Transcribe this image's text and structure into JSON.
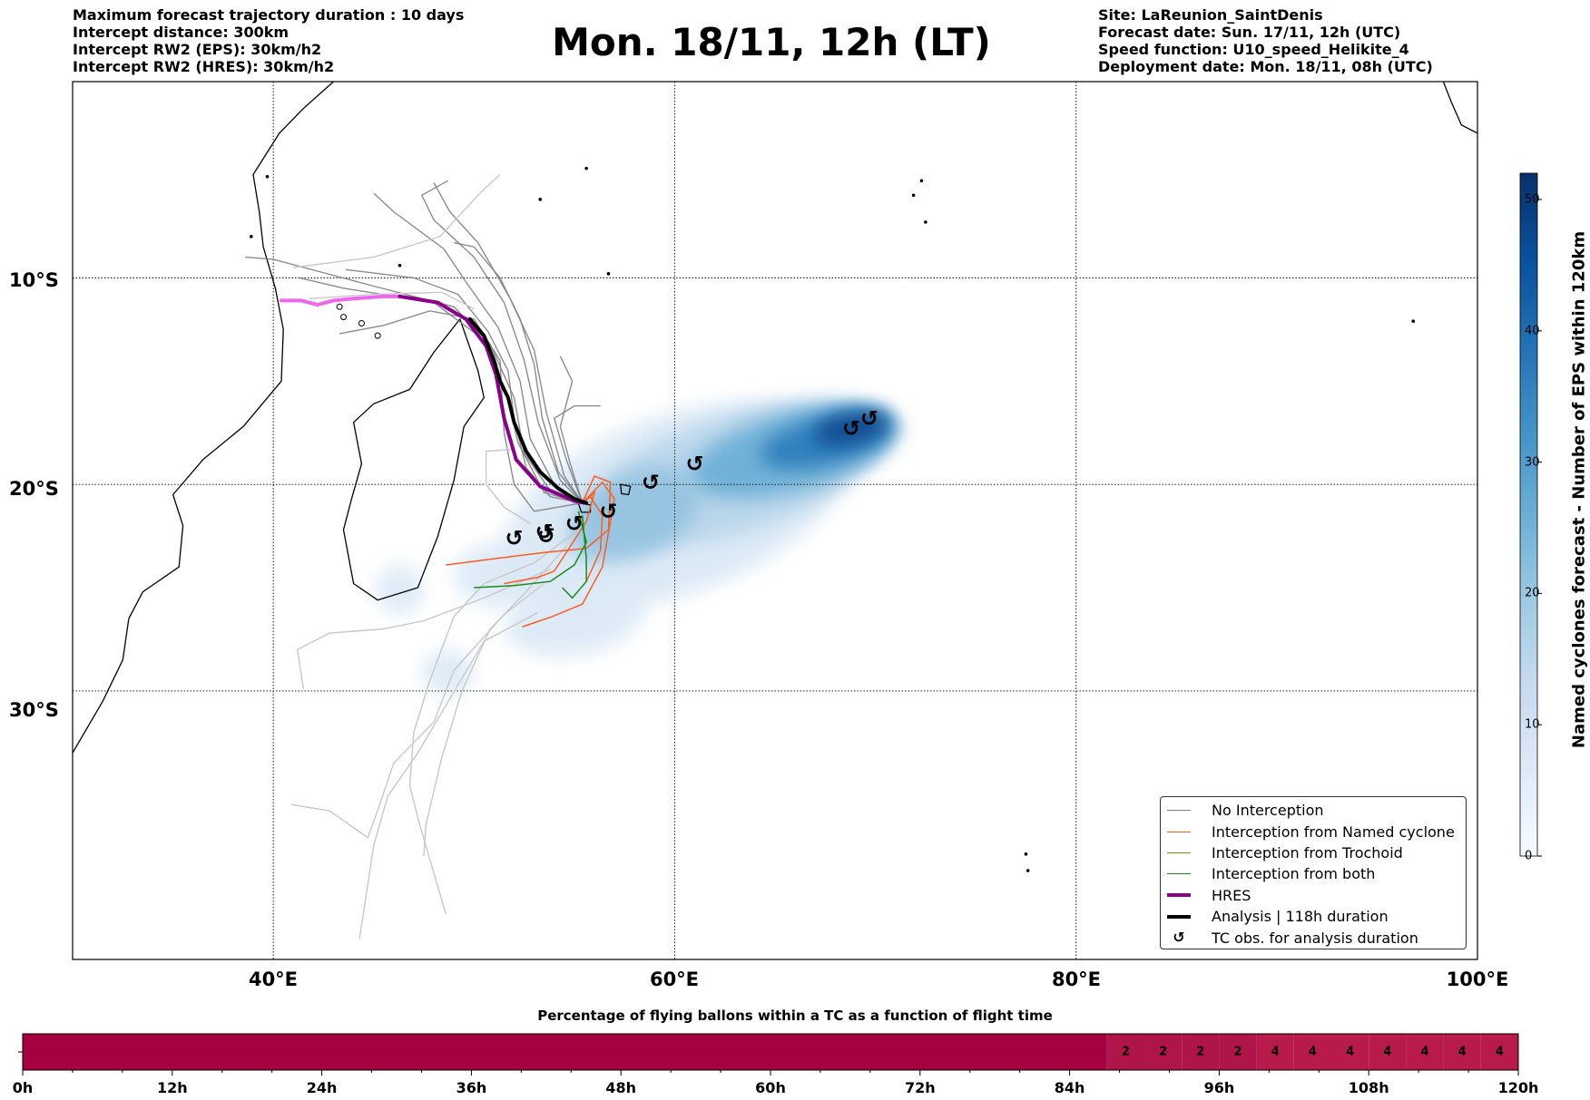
{
  "header": {
    "title": "Mon. 18/11, 12h (LT)",
    "left_lines": [
      "Maximum forecast trajectory duration : 10 days",
      "Intercept distance: 300km",
      "Intercept RW2 (EPS):  30km/h2",
      "Intercept RW2 (HRES): 30km/h2"
    ],
    "right_lines": [
      "Site: LaReunion_SaintDenis",
      "Forecast date: Sun. 17/11, 12h (UTC)",
      "Speed function: U10_speed_Helikite_4",
      "Deployment date: Mon. 18/11, 08h (UTC)"
    ]
  },
  "map": {
    "lat_labels": [
      "10°S",
      "20°S",
      "30°S"
    ],
    "lon_labels": [
      "40°E",
      "60°E",
      "80°E",
      "100°E"
    ],
    "extent": {
      "lon_min": 30,
      "lon_max": 100,
      "lat_min": -43,
      "lat_max": -0.5
    },
    "tc_observations": [
      {
        "lon": 52.0,
        "lat": -22.6
      },
      {
        "lon": 53.5,
        "lat": -22.3
      },
      {
        "lon": 53.6,
        "lat": -22.5
      },
      {
        "lon": 55.0,
        "lat": -21.9
      },
      {
        "lon": 56.7,
        "lat": -21.3
      },
      {
        "lon": 58.8,
        "lat": -19.9
      },
      {
        "lon": 61.0,
        "lat": -19.0
      },
      {
        "lon": 68.8,
        "lat": -17.3
      },
      {
        "lon": 69.7,
        "lat": -16.8
      }
    ]
  },
  "legend": {
    "items": [
      {
        "label": "No Interception",
        "color": "#808080",
        "kind": "line",
        "width": 1.5
      },
      {
        "label": "Interception from Named cyclone",
        "color": "#ff5a1f",
        "kind": "line",
        "width": 1.5
      },
      {
        "label": "Interception from Trochoid",
        "color": "#8b8b00",
        "kind": "line",
        "width": 1.5
      },
      {
        "label": "Interception from both",
        "color": "#1a8a1a",
        "kind": "line",
        "width": 1.5
      },
      {
        "label": "HRES",
        "color": "#8b008b",
        "kind": "line",
        "width": 4
      },
      {
        "label": "Analysis | 118h duration",
        "color": "#000000",
        "kind": "line",
        "width": 4
      },
      {
        "label": "TC obs. for analysis duration",
        "color": "#000000",
        "kind": "symbol",
        "symbol": "↺"
      }
    ]
  },
  "colorbar": {
    "label": "Named cyclones forecast - Number of EPS within 120km",
    "ticks": [
      "0",
      "10",
      "20",
      "30",
      "40",
      "50"
    ],
    "min": 0,
    "max": 52,
    "colors": [
      "#f7fbff",
      "#deebf7",
      "#c6dbef",
      "#9ecae1",
      "#6baed6",
      "#4292c6",
      "#2171b5",
      "#08519c",
      "#08306b"
    ]
  },
  "timeline": {
    "title": "Percentage of flying ballons within a TC as a function of flight time",
    "tick_labels": [
      "0h",
      "12h",
      "24h",
      "36h",
      "48h",
      "60h",
      "72h",
      "84h",
      "96h",
      "108h",
      "120h"
    ],
    "hours_max": 120,
    "segments": [
      {
        "from_h": 0,
        "to_h": 87,
        "color": "#a50040",
        "label": ""
      },
      {
        "from_h": 87,
        "to_h": 90,
        "color": "#b0154a",
        "label": "2"
      },
      {
        "from_h": 90,
        "to_h": 93,
        "color": "#b0154a",
        "label": "2"
      },
      {
        "from_h": 93,
        "to_h": 96,
        "color": "#b0154a",
        "label": "2"
      },
      {
        "from_h": 96,
        "to_h": 99,
        "color": "#b0154a",
        "label": "2"
      },
      {
        "from_h": 99,
        "to_h": 102,
        "color": "#b81a4c",
        "label": "4"
      },
      {
        "from_h": 102,
        "to_h": 105,
        "color": "#b81a4c",
        "label": "4"
      },
      {
        "from_h": 105,
        "to_h": 108,
        "color": "#b81a4c",
        "label": "4"
      },
      {
        "from_h": 108,
        "to_h": 111,
        "color": "#b81a4c",
        "label": "4"
      },
      {
        "from_h": 111,
        "to_h": 114,
        "color": "#b81a4c",
        "label": "4"
      },
      {
        "from_h": 114,
        "to_h": 117,
        "color": "#b81a4c",
        "label": "4"
      },
      {
        "from_h": 117,
        "to_h": 120,
        "color": "#b81a4c",
        "label": "4"
      }
    ]
  }
}
